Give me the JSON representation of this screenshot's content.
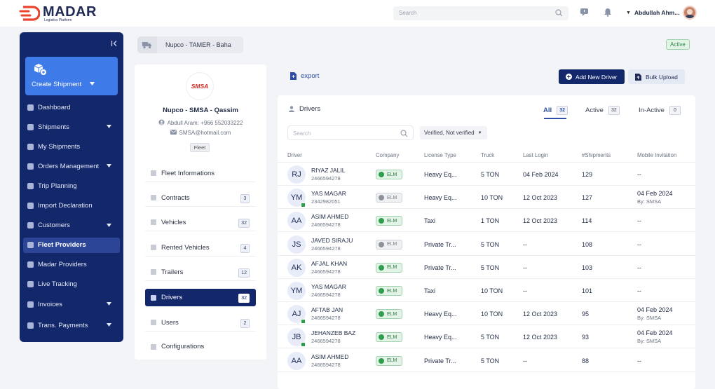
{
  "colors": {
    "primary": "#13276b",
    "accent": "#3f7be8",
    "success": "#2e9e4e"
  },
  "app": {
    "name": "MADAR",
    "tagline": "Logistics Platform"
  },
  "header": {
    "search_placeholder": "Search",
    "user_name": "Abdullah Ahm...",
    "icons": [
      "chat-icon",
      "bell-icon"
    ]
  },
  "sidebar": {
    "create_label": "Create Shipment",
    "items": [
      {
        "label": "Dashboard",
        "icon": "dashboard-icon",
        "has_children": false,
        "active": false
      },
      {
        "label": "Shipments",
        "icon": "box-icon",
        "has_children": true,
        "active": false
      },
      {
        "label": "My Shipments",
        "icon": "box-icon",
        "has_children": false,
        "active": false
      },
      {
        "label": "Orders Management",
        "icon": "orders-icon",
        "has_children": true,
        "active": false
      },
      {
        "label": "Trip Planning",
        "icon": "route-icon",
        "has_children": false,
        "active": false
      },
      {
        "label": "Import Declaration",
        "icon": "import-icon",
        "has_children": false,
        "active": false
      },
      {
        "label": "Customers",
        "icon": "users-icon",
        "has_children": true,
        "active": false
      },
      {
        "label": "Fleet Providers",
        "icon": "truck-icon",
        "has_children": false,
        "active": true
      },
      {
        "label": "Madar Providers",
        "icon": "truck-icon",
        "has_children": false,
        "active": false
      },
      {
        "label": "Live Tracking",
        "icon": "tracking-icon",
        "has_children": false,
        "active": false
      },
      {
        "label": "Invoices",
        "icon": "invoice-icon",
        "has_children": true,
        "active": false
      },
      {
        "label": "Trans. Payments",
        "icon": "payment-icon",
        "has_children": true,
        "active": false
      }
    ]
  },
  "breadcrumb": {
    "text": "Nupco - TAMER - Baha",
    "status": "Active"
  },
  "company": {
    "logo_text": "SMSA",
    "name": "Nupco - SMSA - Qassim",
    "contact": "Abdull Aram: +966 552033222",
    "email": "SMSA@hotmail.com",
    "tag": "Fleet"
  },
  "menu": [
    {
      "label": "Fleet Informations",
      "count": null,
      "active": false
    },
    {
      "label": "Contracts",
      "count": "3",
      "active": false
    },
    {
      "label": "Vehicles",
      "count": "32",
      "active": false
    },
    {
      "label": "Rented Vehicles",
      "count": "4",
      "active": false
    },
    {
      "label": "Trailers",
      "count": "12",
      "active": false
    },
    {
      "label": "Drivers",
      "count": "32",
      "active": true
    },
    {
      "label": "Users",
      "count": "2",
      "active": false
    },
    {
      "label": "Configurations",
      "count": null,
      "active": false
    }
  ],
  "actions": {
    "export": "export",
    "add": "Add New Driver",
    "bulk": "Bulk Upload"
  },
  "drivers_panel": {
    "title": "Drivers",
    "tabs": [
      {
        "label": "All",
        "count": "32",
        "active": true
      },
      {
        "label": "Active",
        "count": "32",
        "active": false
      },
      {
        "label": "In-Active",
        "count": "0",
        "active": false
      }
    ],
    "search_placeholder": "Search",
    "filter": "Verified, Not verified"
  },
  "table": {
    "headers": [
      "Driver",
      "Company",
      "License Type",
      "Truck",
      "Last Login",
      "#Shipments",
      "Mobile Invitation"
    ],
    "rows": [
      {
        "initials": "RJ",
        "badge": false,
        "name": "RIYAZ JALIL",
        "phone": "2466594278",
        "elm": "ELM",
        "elm_verified": true,
        "license": "Heavy Eq...",
        "truck": "5 TON",
        "last_login": "04 Feb 2024",
        "shipments": "129",
        "inv_date": "--",
        "inv_by": ""
      },
      {
        "initials": "YM",
        "badge": true,
        "name": "YAS MAGAR",
        "phone": "2342982051",
        "elm": "ELM",
        "elm_verified": false,
        "license": "Heavy Eq...",
        "truck": "10 TON",
        "last_login": "12 Oct 2023",
        "shipments": "127",
        "inv_date": "04 Feb 2024",
        "inv_by": "By: SMSA"
      },
      {
        "initials": "AA",
        "badge": false,
        "name": "ASIM AHMED",
        "phone": "2466594278",
        "elm": "ELM",
        "elm_verified": true,
        "license": "Taxi",
        "truck": "1 TON",
        "last_login": "12 Oct 2023",
        "shipments": "114",
        "inv_date": "--",
        "inv_by": ""
      },
      {
        "initials": "JS",
        "badge": false,
        "name": "JAVED SIRAJU",
        "phone": "2466594278",
        "elm": "ELM",
        "elm_verified": false,
        "license": "Private Tr...",
        "truck": "5 TON",
        "last_login": "--",
        "shipments": "108",
        "inv_date": "--",
        "inv_by": ""
      },
      {
        "initials": "AK",
        "badge": false,
        "name": "AFJAL KHAN",
        "phone": "2466594278",
        "elm": "ELM",
        "elm_verified": true,
        "license": "Private Tr...",
        "truck": "5 TON",
        "last_login": "--",
        "shipments": "103",
        "inv_date": "--",
        "inv_by": ""
      },
      {
        "initials": "YM",
        "badge": false,
        "name": "YAS MAGAR",
        "phone": "2466594278",
        "elm": "ELM",
        "elm_verified": true,
        "license": "Taxi",
        "truck": "10 TON",
        "last_login": "--",
        "shipments": "101",
        "inv_date": "--",
        "inv_by": ""
      },
      {
        "initials": "AJ",
        "badge": true,
        "name": "AFTAB JAN",
        "phone": "2466594278",
        "elm": "ELM",
        "elm_verified": true,
        "license": "Heavy Eq...",
        "truck": "10 TON",
        "last_login": "12 Oct 2023",
        "shipments": "95",
        "inv_date": "04 Feb 2024",
        "inv_by": "By: SMSA"
      },
      {
        "initials": "JB",
        "badge": true,
        "name": "JEHANZEB BAZ",
        "phone": "2466594278",
        "elm": "ELM",
        "elm_verified": true,
        "license": "Heavy Eq...",
        "truck": "5 TON",
        "last_login": "12 Oct 2023",
        "shipments": "93",
        "inv_date": "04 Feb 2024",
        "inv_by": "By: SMSA"
      },
      {
        "initials": "AA",
        "badge": false,
        "name": "ASIM AHMED",
        "phone": "2466594278",
        "elm": "ELM",
        "elm_verified": true,
        "license": "Private Tr...",
        "truck": "5 TON",
        "last_login": "--",
        "shipments": "88",
        "inv_date": "--",
        "inv_by": ""
      }
    ]
  }
}
